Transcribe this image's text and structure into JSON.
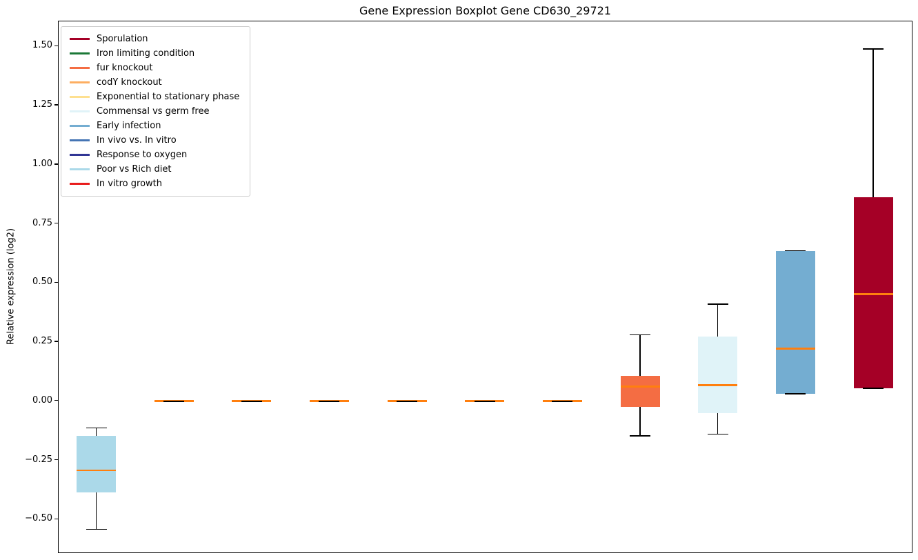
{
  "figure": {
    "title": "Gene Expression Boxplot Gene CD630_29721",
    "y_axis_label": "Relative expression (log2)"
  },
  "chart_data": {
    "type": "boxplot",
    "title": "Gene Expression Boxplot Gene CD630_29721",
    "xlabel": "",
    "ylabel": "Relative expression (log2)",
    "ylim": [
      -0.645,
      1.606
    ],
    "yticks": [
      -0.5,
      -0.25,
      0.0,
      0.25,
      0.5,
      0.75,
      1.0,
      1.25,
      1.5
    ],
    "grid": false,
    "legend_position": "upper left",
    "colors": {
      "median_line": "#ff7f0e",
      "whisker": "#000000"
    },
    "legend_order": [
      "Sporulation",
      "Iron limiting condition",
      "fur knockout",
      "codY knockout",
      "Exponential to stationary phase",
      "Commensal vs germ free",
      "Early infection",
      "In vivo vs. In vitro",
      "Response to oxygen",
      "Poor vs Rich diet",
      "In vitro growth"
    ],
    "series": [
      {
        "label": "Poor vs Rich diet",
        "color": "#abd9e9",
        "whisker_low": -0.542,
        "q1": -0.385,
        "median": -0.292,
        "q3": -0.146,
        "whisker_high": -0.113
      },
      {
        "label": "Iron limiting condition",
        "color": "#1b7837",
        "whisker_low": 0.0,
        "q1": 0.0,
        "median": 0.0,
        "q3": 0.0,
        "whisker_high": 0.0
      },
      {
        "label": "codY knockout",
        "color": "#fdae61",
        "whisker_low": 0.0,
        "q1": 0.0,
        "median": 0.0,
        "q3": 0.0,
        "whisker_high": 0.0
      },
      {
        "label": "Exponential to stationary phase",
        "color": "#fee090",
        "whisker_low": 0.0,
        "q1": 0.0,
        "median": 0.0,
        "q3": 0.0,
        "whisker_high": 0.0
      },
      {
        "label": "In vivo vs. In vitro",
        "color": "#4575b4",
        "whisker_low": 0.0,
        "q1": 0.0,
        "median": 0.0,
        "q3": 0.0,
        "whisker_high": 0.0
      },
      {
        "label": "Response to oxygen",
        "color": "#313695",
        "whisker_low": 0.0,
        "q1": 0.0,
        "median": 0.0,
        "q3": 0.0,
        "whisker_high": 0.0
      },
      {
        "label": "In vitro growth",
        "color": "#e81c1c",
        "whisker_low": 0.0,
        "q1": 0.0,
        "median": 0.0,
        "q3": 0.0,
        "whisker_high": 0.0
      },
      {
        "label": "fur knockout",
        "color": "#f46d43",
        "whisker_low": -0.147,
        "q1": -0.024,
        "median": 0.062,
        "q3": 0.107,
        "whisker_high": 0.281
      },
      {
        "label": "Commensal vs germ free",
        "color": "#e0f3f8",
        "whisker_low": -0.139,
        "q1": -0.051,
        "median": 0.068,
        "q3": 0.274,
        "whisker_high": 0.41
      },
      {
        "label": "Early infection",
        "color": "#74add1",
        "whisker_low": 0.031,
        "q1": 0.031,
        "median": 0.223,
        "q3": 0.636,
        "whisker_high": 0.636
      },
      {
        "label": "Sporulation",
        "color": "#a50026",
        "whisker_low": 0.055,
        "q1": 0.055,
        "median": 0.452,
        "q3": 0.862,
        "whisker_high": 1.49
      }
    ]
  }
}
